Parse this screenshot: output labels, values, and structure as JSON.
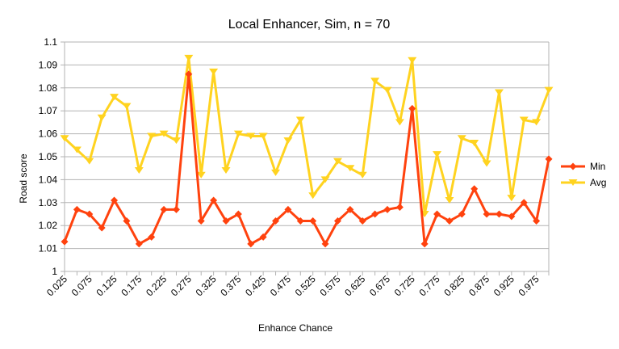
{
  "chart_data": {
    "type": "line",
    "title": "Local Enhancer, Sim, n = 70",
    "xlabel": "Enhance Chance",
    "ylabel": "Road score",
    "x": [
      0.025,
      0.05,
      0.075,
      0.1,
      0.125,
      0.15,
      0.175,
      0.2,
      0.225,
      0.25,
      0.275,
      0.3,
      0.325,
      0.35,
      0.375,
      0.4,
      0.425,
      0.45,
      0.475,
      0.5,
      0.525,
      0.55,
      0.575,
      0.6,
      0.625,
      0.65,
      0.675,
      0.7,
      0.725,
      0.75,
      0.775,
      0.8,
      0.825,
      0.85,
      0.875,
      0.9,
      0.925,
      0.95,
      0.975,
      1.0
    ],
    "x_tick_labels": [
      "0.025",
      "0.075",
      "0.125",
      "0.175",
      "0.225",
      "0.275",
      "0.325",
      "0.375",
      "0.425",
      "0.475",
      "0.525",
      "0.575",
      "0.625",
      "0.675",
      "0.725",
      "0.775",
      "0.825",
      "0.875",
      "0.925",
      "0.975"
    ],
    "ylim": [
      1,
      1.1
    ],
    "y_tick_labels": [
      "1",
      "1.01",
      "1.02",
      "1.03",
      "1.04",
      "1.05",
      "1.06",
      "1.07",
      "1.08",
      "1.09",
      "1.1"
    ],
    "grid": true,
    "legend_position": "right",
    "series": [
      {
        "name": "Min",
        "color": "#ff420e",
        "marker": "diamond",
        "values": [
          1.013,
          1.027,
          1.025,
          1.019,
          1.031,
          1.022,
          1.012,
          1.015,
          1.027,
          1.027,
          1.086,
          1.022,
          1.031,
          1.022,
          1.025,
          1.012,
          1.015,
          1.022,
          1.027,
          1.022,
          1.022,
          1.012,
          1.022,
          1.027,
          1.022,
          1.025,
          1.027,
          1.028,
          1.071,
          1.012,
          1.025,
          1.022,
          1.025,
          1.036,
          1.025,
          1.025,
          1.024,
          1.03,
          1.022,
          1.049
        ]
      },
      {
        "name": "Avg",
        "color": "#ffd320",
        "marker": "triangle-down",
        "values": [
          1.058,
          1.053,
          1.048,
          1.067,
          1.076,
          1.072,
          1.044,
          1.059,
          1.06,
          1.057,
          1.093,
          1.042,
          1.087,
          1.044,
          1.06,
          1.059,
          1.059,
          1.043,
          1.057,
          1.066,
          1.033,
          1.04,
          1.048,
          1.045,
          1.042,
          1.083,
          1.079,
          1.065,
          1.092,
          1.025,
          1.051,
          1.031,
          1.058,
          1.056,
          1.047,
          1.078,
          1.032,
          1.066,
          1.065,
          1.079
        ]
      }
    ]
  }
}
